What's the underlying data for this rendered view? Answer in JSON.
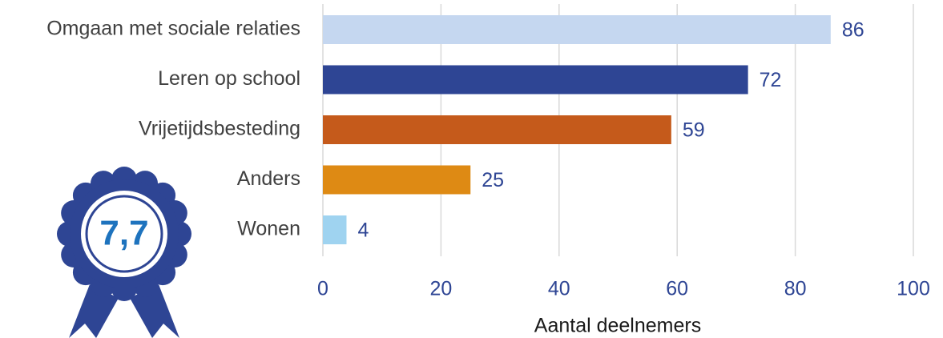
{
  "chart_data": {
    "type": "barh",
    "categories": [
      "Omgaan met sociale relaties",
      "Leren op school",
      "Vrijetijdsbesteding",
      "Anders",
      "Wonen"
    ],
    "values": [
      86,
      72,
      59,
      25,
      4
    ],
    "colors": [
      "#c5d7f0",
      "#2e4594",
      "#c55a1b",
      "#de8a14",
      "#9fd3f0"
    ],
    "xlim": [
      0,
      100
    ],
    "xticks": [
      0,
      20,
      40,
      60,
      80,
      100
    ],
    "xlabel": "Aantal deelnemers",
    "grid": true,
    "badge": "7,7"
  }
}
